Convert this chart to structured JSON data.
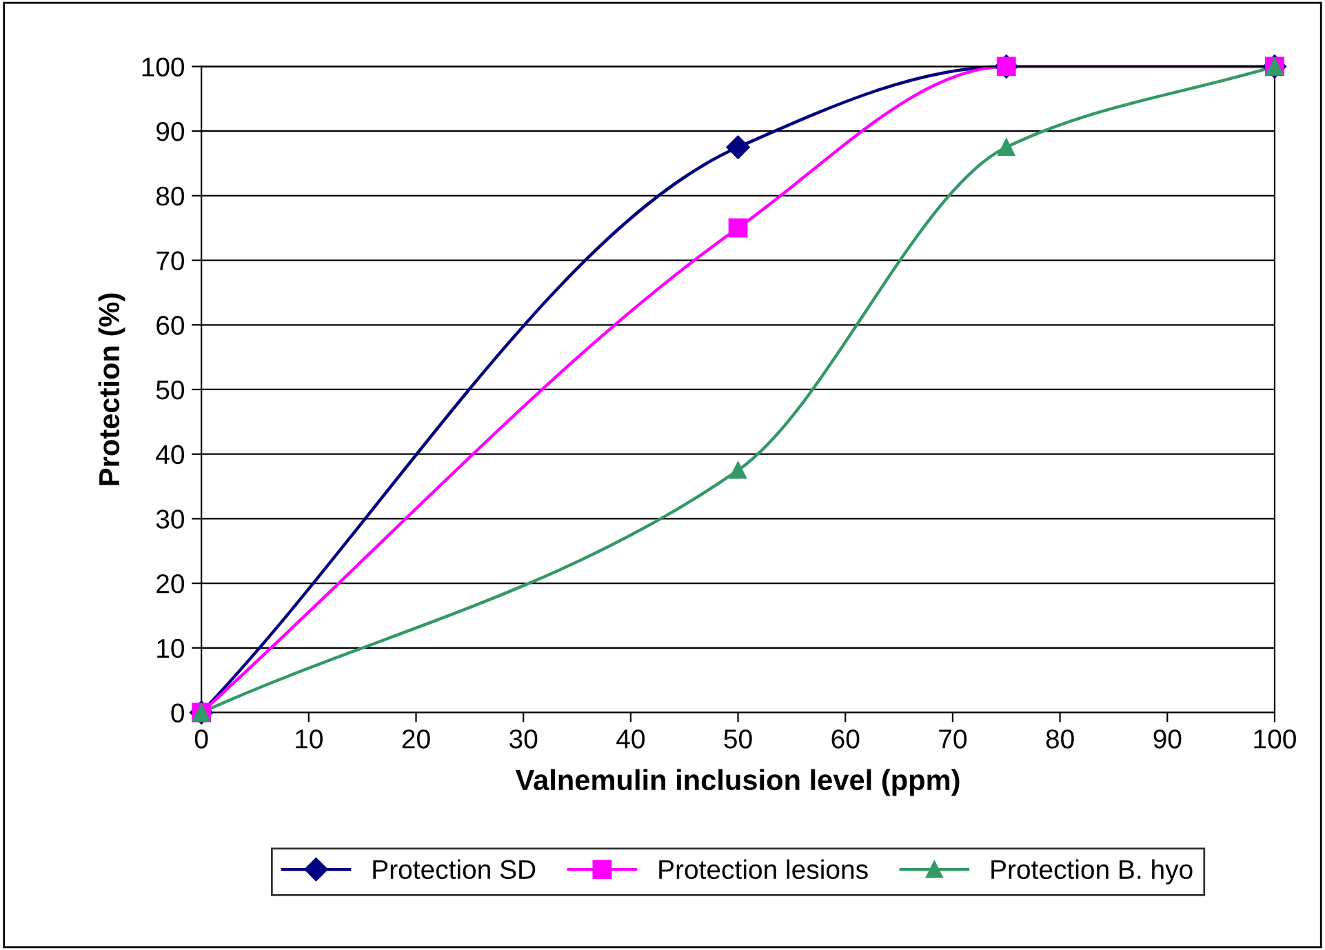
{
  "chart_data": {
    "type": "line",
    "xlabel": "Valnemulin inclusion level (ppm)",
    "ylabel": "Protection (%)",
    "x": [
      0,
      50,
      75,
      100
    ],
    "series": [
      {
        "name": "Protection SD",
        "color": "#000080",
        "marker": "diamond",
        "values": [
          0,
          87.5,
          100,
          100
        ]
      },
      {
        "name": "Protection lesions",
        "color": "#ff00ff",
        "marker": "square",
        "values": [
          0,
          75,
          100,
          100
        ]
      },
      {
        "name": "Protection B. hyo",
        "color": "#339966",
        "marker": "triangle",
        "values": [
          0,
          37.5,
          87.5,
          100
        ]
      }
    ],
    "xlim": [
      0,
      100
    ],
    "xticks": [
      0,
      10,
      20,
      30,
      40,
      50,
      60,
      70,
      80,
      90,
      100
    ],
    "ylim": [
      0,
      100
    ],
    "yticks": [
      0,
      10,
      20,
      30,
      40,
      50,
      60,
      70,
      80,
      90,
      100
    ],
    "grid": "y",
    "legend": "bottom",
    "line_style": "solid"
  }
}
